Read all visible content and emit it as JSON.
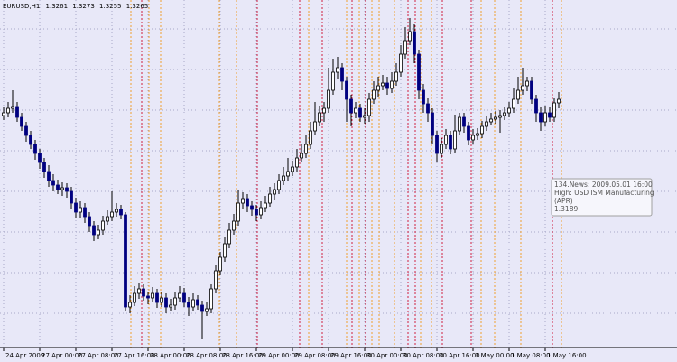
{
  "chart_data": {
    "type": "candlestick",
    "title": "EURUSD,H1",
    "categories": [
      "24 Apr 2009",
      null,
      null,
      null,
      null,
      null,
      null,
      null,
      "27 Apr 00:00",
      null,
      null,
      null,
      null,
      null,
      null,
      null,
      "27 Apr 08:00",
      null,
      null,
      null,
      null,
      null,
      null,
      null,
      "27 Apr 16:00",
      null,
      null,
      null,
      null,
      null,
      null,
      null,
      "28 Apr 00:00",
      null,
      null,
      null,
      null,
      null,
      null,
      null,
      "28 Apr 08:00",
      null,
      null,
      null,
      null,
      null,
      null,
      null,
      "28 Apr 16:00",
      null,
      null,
      null,
      null,
      null,
      null,
      null,
      "29 Apr 00:00",
      null,
      null,
      null,
      null,
      null,
      null,
      null,
      "29 Apr 08:00",
      null,
      null,
      null,
      null,
      null,
      null,
      null,
      "29 Apr 16:00",
      null,
      null,
      null,
      null,
      null,
      null,
      null,
      "30 Apr 00:00",
      null,
      null,
      null,
      null,
      null,
      null,
      null,
      "30 Apr 08:00",
      null,
      null,
      null,
      null,
      null,
      null,
      null,
      "30 Apr 16:00",
      null,
      null,
      null,
      null,
      null,
      null,
      null,
      "1 May 00:00",
      null,
      null,
      null,
      null,
      null,
      null,
      null,
      "1 May 08:00",
      null,
      null,
      null,
      null,
      null,
      null,
      null,
      "1 May 16:00",
      null,
      null,
      null
    ],
    "open": [
      1.3247,
      1.325,
      1.3255,
      1.3257,
      1.3245,
      1.3235,
      1.3225,
      1.3215,
      1.3205,
      1.3195,
      1.3185,
      1.3175,
      1.317,
      1.3165,
      1.3167,
      1.3163,
      1.315,
      1.314,
      1.3145,
      1.3135,
      1.3125,
      1.3115,
      1.312,
      1.313,
      1.3135,
      1.314,
      1.3143,
      1.3137,
      1.3035,
      1.304,
      1.305,
      1.3055,
      1.3047,
      1.3045,
      1.305,
      1.304,
      1.3045,
      1.3035,
      1.3037,
      1.3045,
      1.305,
      1.304,
      1.3035,
      1.3043,
      1.3037,
      1.303,
      1.3033,
      1.3055,
      1.3075,
      1.309,
      1.3105,
      1.312,
      1.313,
      1.315,
      1.3155,
      1.3147,
      1.3143,
      1.3137,
      1.3145,
      1.315,
      1.316,
      1.3165,
      1.3175,
      1.318,
      1.3185,
      1.319,
      1.32,
      1.3205,
      1.3215,
      1.323,
      1.324,
      1.325,
      1.3255,
      1.3275,
      1.3295,
      1.33,
      1.3285,
      1.3265,
      1.325,
      1.3255,
      1.3245,
      1.3247,
      1.3265,
      1.3275,
      1.328,
      1.3283,
      1.3277,
      1.3285,
      1.3295,
      1.3315,
      1.333,
      1.334,
      1.3315,
      1.3275,
      1.326,
      1.325,
      1.3225,
      1.3205,
      1.3215,
      1.3225,
      1.321,
      1.323,
      1.3245,
      1.3235,
      1.322,
      1.3225,
      1.3227,
      1.3235,
      1.324,
      1.3243,
      1.3245,
      1.3247,
      1.325,
      1.3255,
      1.3265,
      1.3275,
      1.328,
      1.3285,
      1.3265,
      1.325,
      1.324,
      1.325,
      1.3245,
      1.3261
    ],
    "high": [
      1.3256,
      1.3262,
      1.3275,
      1.3262,
      1.325,
      1.324,
      1.323,
      1.322,
      1.321,
      1.32,
      1.3192,
      1.3182,
      1.3176,
      1.3173,
      1.3172,
      1.3168,
      1.3156,
      1.3152,
      1.315,
      1.314,
      1.313,
      1.3126,
      1.3136,
      1.3142,
      1.3163,
      1.315,
      1.3148,
      1.314,
      1.3048,
      1.3058,
      1.3062,
      1.306,
      1.3052,
      1.3057,
      1.3055,
      1.3052,
      1.305,
      1.3044,
      1.3052,
      1.3058,
      1.3056,
      1.3046,
      1.305,
      1.3048,
      1.3042,
      1.304,
      1.306,
      1.3082,
      1.3096,
      1.3112,
      1.3128,
      1.3138,
      1.3165,
      1.3162,
      1.316,
      1.3152,
      1.3148,
      1.3152,
      1.3158,
      1.3168,
      1.3172,
      1.3182,
      1.319,
      1.32,
      1.3197,
      1.321,
      1.3215,
      1.3225,
      1.324,
      1.3262,
      1.3258,
      1.3262,
      1.33,
      1.331,
      1.3312,
      1.3305,
      1.329,
      1.327,
      1.3262,
      1.326,
      1.3255,
      1.3272,
      1.3285,
      1.329,
      1.3292,
      1.329,
      1.3295,
      1.3305,
      1.3325,
      1.3345,
      1.3355,
      1.3348,
      1.332,
      1.3282,
      1.3266,
      1.3255,
      1.323,
      1.3222,
      1.3232,
      1.323,
      1.3248,
      1.325,
      1.325,
      1.324,
      1.3232,
      1.3233,
      1.3241,
      1.3246,
      1.325,
      1.3252,
      1.3253,
      1.3256,
      1.3262,
      1.3278,
      1.329,
      1.33,
      1.329,
      1.329,
      1.327,
      1.3256,
      1.3258,
      1.3256,
      1.3266,
      1.3273
    ],
    "low": [
      1.3242,
      1.3245,
      1.325,
      1.324,
      1.323,
      1.3218,
      1.321,
      1.3198,
      1.3188,
      1.3178,
      1.3168,
      1.3163,
      1.316,
      1.3158,
      1.3156,
      1.3143,
      1.3133,
      1.3134,
      1.3128,
      1.3118,
      1.3108,
      1.311,
      1.3115,
      1.3126,
      1.313,
      1.3135,
      1.3132,
      1.303,
      1.3028,
      1.3036,
      1.3044,
      1.3042,
      1.3038,
      1.304,
      1.3034,
      1.3035,
      1.3028,
      1.303,
      1.3032,
      1.304,
      1.3035,
      1.3025,
      1.303,
      1.3032,
      1.3,
      1.3025,
      1.3028,
      1.305,
      1.307,
      1.3085,
      1.31,
      1.3115,
      1.3125,
      1.3144,
      1.314,
      1.3136,
      1.313,
      1.3132,
      1.314,
      1.3146,
      1.3154,
      1.316,
      1.317,
      1.3175,
      1.318,
      1.3185,
      1.3195,
      1.32,
      1.321,
      1.3225,
      1.3235,
      1.324,
      1.325,
      1.327,
      1.3288,
      1.3275,
      1.324,
      1.3235,
      1.3244,
      1.324,
      1.3238,
      1.324,
      1.326,
      1.3268,
      1.3275,
      1.327,
      1.3272,
      1.328,
      1.329,
      1.331,
      1.3325,
      1.3305,
      1.3265,
      1.325,
      1.324,
      1.3215,
      1.3195,
      1.32,
      1.321,
      1.3204,
      1.3205,
      1.3225,
      1.3228,
      1.3214,
      1.3215,
      1.322,
      1.3222,
      1.323,
      1.3236,
      1.3238,
      1.3228,
      1.3242,
      1.3245,
      1.325,
      1.326,
      1.327,
      1.3274,
      1.326,
      1.324,
      1.323,
      1.3235,
      1.324,
      1.324,
      1.3255
    ],
    "close": [
      1.325,
      1.3255,
      1.3257,
      1.3245,
      1.3235,
      1.3225,
      1.3215,
      1.3205,
      1.3195,
      1.3185,
      1.3175,
      1.317,
      1.3165,
      1.3167,
      1.3163,
      1.315,
      1.314,
      1.3145,
      1.3135,
      1.3125,
      1.3115,
      1.312,
      1.313,
      1.3135,
      1.314,
      1.3143,
      1.3137,
      1.3035,
      1.304,
      1.305,
      1.3055,
      1.3047,
      1.3045,
      1.305,
      1.304,
      1.3045,
      1.3035,
      1.3037,
      1.3045,
      1.305,
      1.304,
      1.3035,
      1.3043,
      1.3037,
      1.303,
      1.3033,
      1.3055,
      1.3075,
      1.309,
      1.3105,
      1.312,
      1.313,
      1.315,
      1.3155,
      1.3147,
      1.3143,
      1.3137,
      1.3145,
      1.315,
      1.316,
      1.3165,
      1.3175,
      1.318,
      1.3185,
      1.319,
      1.32,
      1.3205,
      1.3215,
      1.323,
      1.324,
      1.325,
      1.3255,
      1.3275,
      1.3295,
      1.33,
      1.3285,
      1.3265,
      1.325,
      1.3255,
      1.3245,
      1.3247,
      1.3265,
      1.3275,
      1.328,
      1.3283,
      1.3277,
      1.3285,
      1.3295,
      1.3315,
      1.333,
      1.334,
      1.3315,
      1.3275,
      1.326,
      1.325,
      1.3225,
      1.3205,
      1.3215,
      1.3225,
      1.321,
      1.323,
      1.3245,
      1.3235,
      1.322,
      1.3225,
      1.3227,
      1.3235,
      1.324,
      1.3243,
      1.3245,
      1.3247,
      1.325,
      1.3255,
      1.3265,
      1.3275,
      1.328,
      1.3285,
      1.3265,
      1.325,
      1.324,
      1.325,
      1.3245,
      1.3261,
      1.3265
    ],
    "ylim": [
      1.299,
      1.3375
    ],
    "up_color": "#ffffff",
    "down_color": "#000080",
    "wick_color": "#000000",
    "tooltip": {
      "lines": [
        "134.News: 2009.05.01 16:00",
        "High: USD ISM Manufacturing",
        "(APR)"
      ],
      "value": 1.3189
    }
  }
}
